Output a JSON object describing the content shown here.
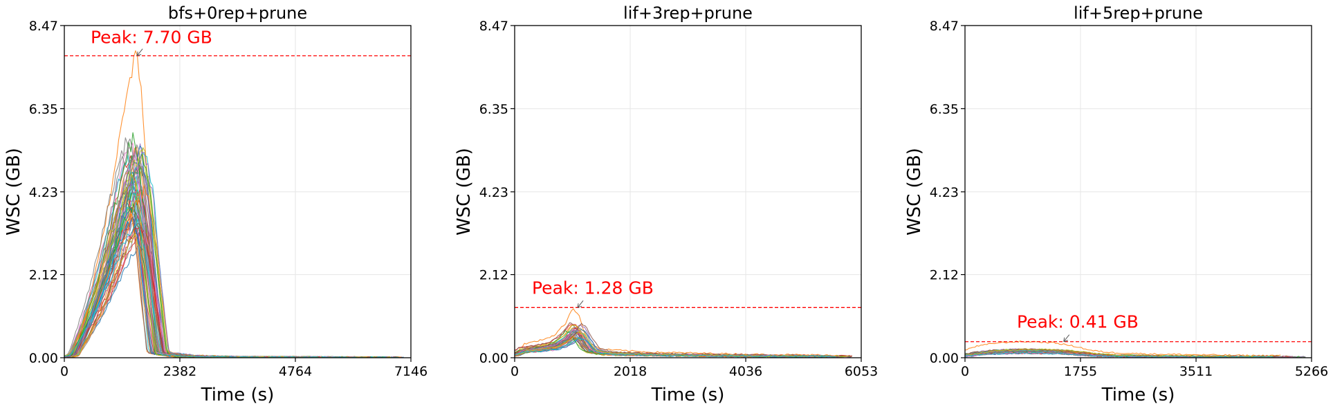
{
  "chart_data": [
    {
      "type": "line",
      "title": "bfs+0rep+prune",
      "xlabel": "Time (s)",
      "ylabel": "WSC (GB)",
      "xlim": [
        0,
        7146
      ],
      "ylim": [
        0,
        8.47
      ],
      "xticks": [
        0,
        2382,
        4764,
        7146
      ],
      "xtick_labels": [
        "0",
        "2382",
        "4764",
        "7146"
      ],
      "yticks": [
        0,
        2.12,
        4.23,
        6.35,
        8.47
      ],
      "ytick_labels": [
        "0.00",
        "2.12",
        "4.23",
        "6.35",
        "8.47"
      ],
      "grid": true,
      "peak": {
        "value": 7.7,
        "time": 1500,
        "label": "Peak: 7.70 GB"
      },
      "profile": {
        "x": [
          0,
          200,
          400,
          700,
          1000,
          1300,
          1500,
          1650,
          1800,
          1950,
          2500,
          3500,
          4500,
          5500,
          6500,
          7000
        ],
        "y": [
          0.0,
          0.1,
          0.8,
          2.0,
          3.5,
          5.2,
          5.8,
          4.5,
          2.2,
          0.15,
          0.05,
          0.02,
          0.02,
          0.01,
          0.01,
          0.01
        ]
      },
      "series_count": 60
    },
    {
      "type": "line",
      "title": "lif+3rep+prune",
      "xlabel": "Time (s)",
      "ylabel": "WSC (GB)",
      "xlim": [
        0,
        6053
      ],
      "ylim": [
        0,
        8.47
      ],
      "xticks": [
        0,
        2018,
        4036,
        6053
      ],
      "xtick_labels": [
        "0",
        "2018",
        "4036",
        "6053"
      ],
      "yticks": [
        0,
        2.12,
        4.23,
        6.35,
        8.47
      ],
      "ytick_labels": [
        "0.00",
        "2.12",
        "4.23",
        "6.35",
        "8.47"
      ],
      "grid": true,
      "peak": {
        "value": 1.28,
        "time": 1100,
        "label": "Peak: 1.28 GB"
      },
      "profile": {
        "x": [
          0,
          150,
          400,
          700,
          900,
          1050,
          1150,
          1250,
          1350,
          1600,
          2500,
          3500,
          4500,
          5500,
          5900
        ],
        "y": [
          0.1,
          0.25,
          0.3,
          0.4,
          0.6,
          0.9,
          0.8,
          0.5,
          0.25,
          0.15,
          0.1,
          0.08,
          0.06,
          0.05,
          0.05
        ]
      },
      "series_count": 40
    },
    {
      "type": "line",
      "title": "lif+5rep+prune",
      "xlabel": "Time (s)",
      "ylabel": "WSC (GB)",
      "xlim": [
        0,
        5266
      ],
      "ylim": [
        0,
        8.47
      ],
      "xticks": [
        0,
        1755,
        3511,
        5266
      ],
      "xtick_labels": [
        "0",
        "1755",
        "3511",
        "5266"
      ],
      "yticks": [
        0,
        2.12,
        4.23,
        6.35,
        8.47
      ],
      "ytick_labels": [
        "0.00",
        "2.12",
        "4.23",
        "6.35",
        "8.47"
      ],
      "grid": true,
      "peak": {
        "value": 0.41,
        "time": 1500,
        "label": "Peak: 0.41 GB"
      },
      "profile": {
        "x": [
          0,
          200,
          500,
          800,
          1100,
          1400,
          1700,
          1900,
          2200,
          2800,
          3500,
          4200,
          4800,
          5200
        ],
        "y": [
          0.08,
          0.15,
          0.2,
          0.22,
          0.22,
          0.2,
          0.15,
          0.1,
          0.07,
          0.05,
          0.04,
          0.03,
          0.03,
          0.02
        ]
      },
      "series_count": 40
    }
  ],
  "colors": {
    "palette": [
      "#1f77b4",
      "#ff7f0e",
      "#2ca02c",
      "#d62728",
      "#9467bd",
      "#8c564b",
      "#e377c2",
      "#7f7f7f",
      "#bcbd22",
      "#17becf"
    ],
    "peak": "#ff0000",
    "grid": "#e6e6e6"
  }
}
